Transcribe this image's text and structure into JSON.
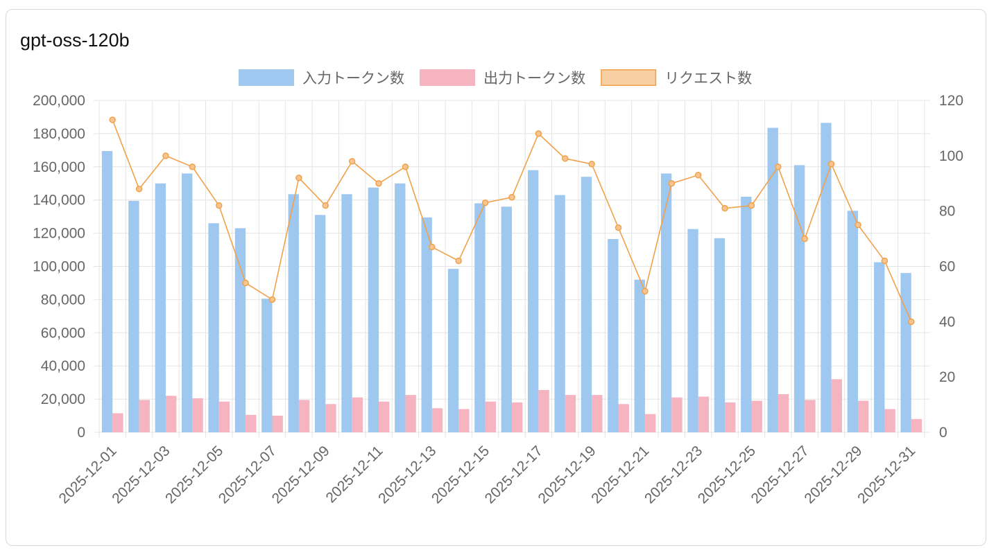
{
  "card": {
    "title": "gpt-oss-120b"
  },
  "chart_data": {
    "type": "bar",
    "title": "gpt-oss-120b",
    "categories": [
      "2025-12-01",
      "2025-12-02",
      "2025-12-03",
      "2025-12-04",
      "2025-12-05",
      "2025-12-06",
      "2025-12-07",
      "2025-12-08",
      "2025-12-09",
      "2025-12-10",
      "2025-12-11",
      "2025-12-12",
      "2025-12-13",
      "2025-12-14",
      "2025-12-15",
      "2025-12-16",
      "2025-12-17",
      "2025-12-18",
      "2025-12-19",
      "2025-12-20",
      "2025-12-21",
      "2025-12-22",
      "2025-12-23",
      "2025-12-24",
      "2025-12-25",
      "2025-12-26",
      "2025-12-27",
      "2025-12-28",
      "2025-12-29",
      "2025-12-30",
      "2025-12-31"
    ],
    "x_tick_labels": [
      "2025-12-01",
      "2025-12-03",
      "2025-12-05",
      "2025-12-07",
      "2025-12-09",
      "2025-12-11",
      "2025-12-13",
      "2025-12-15",
      "2025-12-17",
      "2025-12-19",
      "2025-12-21",
      "2025-12-23",
      "2025-12-25",
      "2025-12-27",
      "2025-12-29",
      "2025-12-31"
    ],
    "series": [
      {
        "name": "入力トークン数",
        "type": "bar",
        "axis": "left",
        "color": "#9fc8f0",
        "values": [
          169500,
          139500,
          150000,
          156000,
          126000,
          123000,
          80500,
          143500,
          131000,
          143500,
          147500,
          150000,
          129500,
          98500,
          138000,
          136000,
          158000,
          143000,
          154000,
          116500,
          92000,
          156000,
          122500,
          117000,
          142000,
          183500,
          161000,
          186500,
          133500,
          102500,
          96000
        ]
      },
      {
        "name": "出力トークン数",
        "type": "bar",
        "axis": "left",
        "color": "#f6b3c0",
        "values": [
          11500,
          19500,
          22000,
          20500,
          18500,
          10500,
          10000,
          19500,
          17000,
          21000,
          18500,
          22500,
          14500,
          14000,
          18500,
          18000,
          25500,
          22500,
          22500,
          17000,
          11000,
          21000,
          21500,
          18000,
          19000,
          23000,
          19500,
          32000,
          19000,
          14000,
          8000
        ]
      },
      {
        "name": "リクエスト数",
        "type": "line",
        "axis": "right",
        "color": "#f0a14a",
        "values": [
          113,
          88,
          100,
          96,
          82,
          54,
          48,
          92,
          82,
          98,
          90,
          96,
          67,
          62,
          83,
          85,
          108,
          99,
          97,
          74,
          51,
          90,
          93,
          81,
          82,
          96,
          70,
          97,
          75,
          62,
          40
        ]
      }
    ],
    "y_left": {
      "min": 0,
      "max": 200000,
      "ticks": [
        "0",
        "20,000",
        "40,000",
        "60,000",
        "80,000",
        "100,000",
        "120,000",
        "140,000",
        "160,000",
        "180,000",
        "200,000"
      ]
    },
    "y_right": {
      "min": 0,
      "max": 120,
      "ticks": [
        "0",
        "20",
        "40",
        "60",
        "80",
        "100",
        "120"
      ]
    },
    "grid": true,
    "legend_position": "top"
  }
}
